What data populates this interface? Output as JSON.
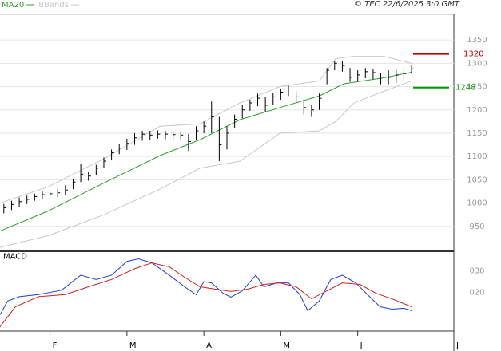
{
  "header": {
    "legend": [
      {
        "name": "MA20",
        "color": "#2ca02c"
      },
      {
        "name": "BBands",
        "color": "#c8c8c8"
      }
    ],
    "copyright": "© TEC 22/6/2025 3:0 GMT"
  },
  "chart_data": [
    {
      "type": "ohlc",
      "color": "#000000",
      "xlim": [
        0,
        118
      ],
      "ylim": [
        900,
        1405
      ],
      "grid": true,
      "yticks": [
        950,
        1000,
        1050,
        1100,
        1150,
        1200,
        1250,
        1300,
        1350
      ],
      "x": [
        1,
        3,
        5,
        7,
        9,
        11,
        13,
        15,
        17,
        19,
        21,
        23,
        25,
        27,
        29,
        31,
        33,
        35,
        37,
        39,
        41,
        43,
        45,
        47,
        49,
        51,
        53,
        55,
        57,
        59,
        61,
        63,
        65,
        67,
        69,
        71,
        73,
        75,
        77,
        79,
        81,
        83,
        85,
        87,
        89,
        91,
        93,
        95,
        97,
        99,
        101,
        103,
        105,
        107
      ],
      "high": [
        998,
        1005,
        1012,
        1016,
        1020,
        1025,
        1028,
        1030,
        1038,
        1052,
        1085,
        1068,
        1082,
        1098,
        1115,
        1126,
        1138,
        1150,
        1155,
        1155,
        1156,
        1155,
        1154,
        1153,
        1148,
        1165,
        1175,
        1218,
        1185,
        1165,
        1190,
        1210,
        1222,
        1235,
        1228,
        1236,
        1246,
        1252,
        1240,
        1222,
        1210,
        1235,
        1290,
        1305,
        1304,
        1290,
        1285,
        1290,
        1288,
        1280,
        1285,
        1286,
        1290,
        1296
      ],
      "low": [
        978,
        985,
        992,
        998,
        1005,
        1008,
        1012,
        1013,
        1018,
        1030,
        1045,
        1048,
        1060,
        1075,
        1092,
        1105,
        1114,
        1125,
        1134,
        1135,
        1138,
        1137,
        1136,
        1135,
        1112,
        1135,
        1150,
        1150,
        1090,
        1115,
        1160,
        1182,
        1198,
        1208,
        1196,
        1210,
        1222,
        1230,
        1215,
        1190,
        1185,
        1200,
        1255,
        1285,
        1282,
        1260,
        1262,
        1268,
        1266,
        1255,
        1255,
        1258,
        1262,
        1278
      ],
      "close": [
        990,
        997,
        1003,
        1008,
        1014,
        1018,
        1020,
        1022,
        1028,
        1045,
        1062,
        1058,
        1075,
        1090,
        1108,
        1118,
        1128,
        1140,
        1148,
        1146,
        1148,
        1148,
        1147,
        1146,
        1132,
        1155,
        1165,
        1185,
        1125,
        1150,
        1180,
        1200,
        1215,
        1225,
        1210,
        1228,
        1238,
        1245,
        1228,
        1205,
        1200,
        1225,
        1285,
        1300,
        1295,
        1270,
        1275,
        1282,
        1280,
        1262,
        1270,
        1275,
        1278,
        1288
      ],
      "series": [
        {
          "name": "MA20",
          "color": "#2ca02c",
          "x": [
            0,
            12.5,
            27,
            41.6,
            52,
            62.4,
            72.8,
            83,
            89.4,
            99.8,
            107
          ],
          "values": [
            940,
            983,
            1043,
            1102,
            1136,
            1179,
            1205,
            1230,
            1256,
            1269,
            1281
          ]
        },
        {
          "name": "BBands",
          "color": "#c8c8c8",
          "x": [
            0,
            12.5,
            27,
            41.6,
            52,
            62.4,
            72.8,
            83,
            87.3,
            92,
            99.8,
            107
          ],
          "upper": [
            1000,
            1035,
            1095,
            1165,
            1170,
            1215,
            1250,
            1262,
            1310,
            1315,
            1315,
            1300
          ],
          "lower": [
            905,
            930,
            975,
            1030,
            1075,
            1090,
            1150,
            1155,
            1175,
            1215,
            1240,
            1262
          ]
        }
      ],
      "annotations": [
        {
          "value": 1320,
          "color": "#c00000"
        },
        {
          "value": 1248,
          "color": "#009900"
        }
      ]
    },
    {
      "type": "line",
      "title": "MACD",
      "xlim": [
        0,
        118
      ],
      "ylim": [
        2,
        38
      ],
      "yticks": [
        {
          "value": 20,
          "label": "020"
        },
        {
          "value": 30,
          "label": "030"
        }
      ],
      "xticks": [
        {
          "value": 13,
          "label": "F"
        },
        {
          "value": 33,
          "label": "M"
        },
        {
          "value": 53,
          "label": "A"
        },
        {
          "value": 73,
          "label": "M"
        },
        {
          "value": 93,
          "label": "J"
        },
        {
          "value": 118,
          "label": "J"
        }
      ],
      "series": [
        {
          "color": "#1f3fd0",
          "x": [
            0,
            2,
            5,
            10,
            16,
            21,
            25,
            29,
            33,
            36,
            39.5,
            44,
            48,
            51,
            53,
            55,
            58,
            60,
            63,
            66.5,
            68.6,
            72,
            75,
            78,
            80,
            83,
            86,
            89,
            92.5,
            95.6,
            98.8,
            101.9,
            105,
            107
          ],
          "values": [
            9.6,
            16,
            18,
            19,
            21,
            28,
            26,
            28,
            34.4,
            35.6,
            33.7,
            28,
            22.6,
            18.9,
            25,
            24.4,
            19.6,
            17.8,
            20.7,
            28,
            22.6,
            24.4,
            24.4,
            18.9,
            11.5,
            16,
            26,
            28,
            24.4,
            18.9,
            13.3,
            12.2,
            12.6,
            11.5
          ]
        },
        {
          "color": "#d02020",
          "x": [
            0,
            4,
            10,
            17,
            23,
            29,
            35,
            39.5,
            44,
            48,
            52,
            56,
            60,
            64.4,
            68.6,
            72.8,
            77,
            81,
            85,
            89,
            93.6,
            97.7,
            101.9,
            107
          ],
          "values": [
            4,
            13.3,
            18,
            19,
            22.6,
            26,
            31,
            33.7,
            31.9,
            27,
            22.6,
            21.5,
            20.4,
            21.5,
            23.7,
            24.4,
            22.6,
            17,
            20.7,
            24.4,
            23.7,
            19.6,
            17,
            13.3
          ]
        }
      ]
    }
  ]
}
